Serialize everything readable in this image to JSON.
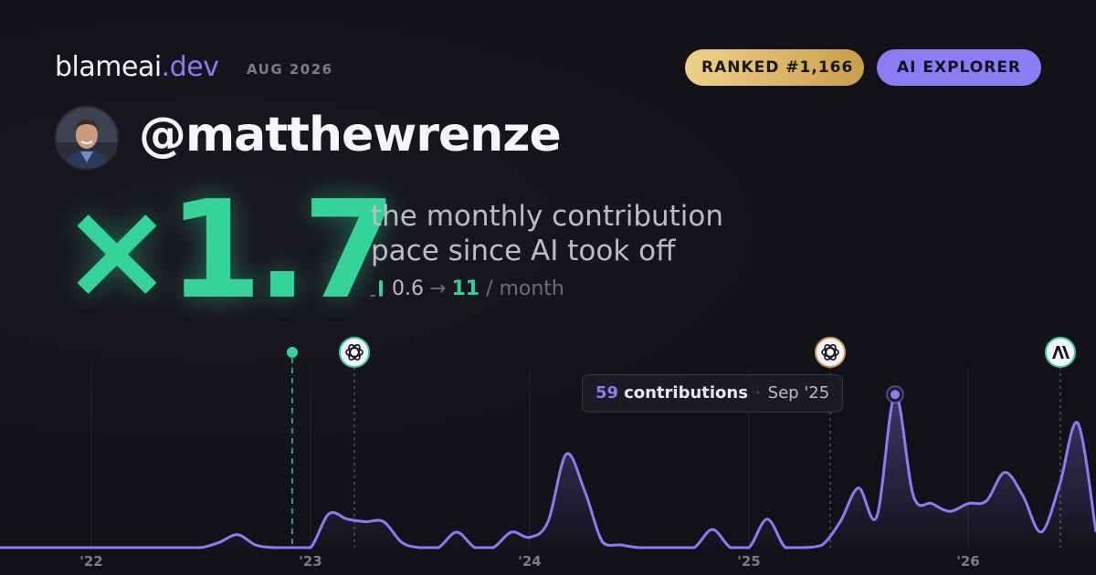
{
  "header": {
    "brand": "blameai",
    "brand_tld": ".dev",
    "date": "AUG 2026",
    "rank": "RANKED #1,166",
    "tier": "AI EXPLORER",
    "username": "@matthewrenze",
    "multiplier": "×1.7",
    "description": "the monthly contribution pace since AI took off",
    "pace_from": "0.6",
    "pace_arrow": "→",
    "pace_to": "11",
    "pace_unit": "/ month"
  },
  "chart_data": {
    "type": "line",
    "categories": [
      null,
      null,
      null,
      null,
      null,
      "'22",
      null,
      null,
      null,
      null,
      null,
      null,
      null,
      null,
      null,
      null,
      null,
      "'23",
      null,
      null,
      null,
      null,
      null,
      null,
      null,
      null,
      null,
      null,
      null,
      "'24",
      null,
      null,
      null,
      null,
      null,
      null,
      null,
      null,
      null,
      null,
      null,
      "'25",
      null,
      null,
      null,
      null,
      null,
      null,
      null,
      null,
      null,
      null,
      null,
      "'26",
      null,
      null,
      null,
      null,
      null,
      null,
      null
    ],
    "series": [
      {
        "name": "contributions",
        "color": "#8b7cf6",
        "values": [
          0,
          0,
          0,
          0,
          0,
          0,
          0,
          0,
          0,
          0,
          0,
          0,
          2,
          5,
          1,
          0,
          0,
          0,
          13,
          11,
          10,
          10,
          2,
          0,
          0,
          6,
          0,
          0,
          6,
          4,
          10,
          36,
          22,
          2,
          1,
          0,
          0,
          0,
          0,
          7,
          0,
          0,
          11,
          0,
          0,
          1,
          10,
          23,
          12,
          59,
          20,
          17,
          14,
          17,
          18,
          29,
          20,
          6,
          24,
          48,
          6
        ]
      }
    ],
    "ylim": [
      0,
      70
    ],
    "grid": true,
    "tooltip": {
      "value": 59,
      "label": "contributions",
      "date": "Sep '25"
    }
  }
}
